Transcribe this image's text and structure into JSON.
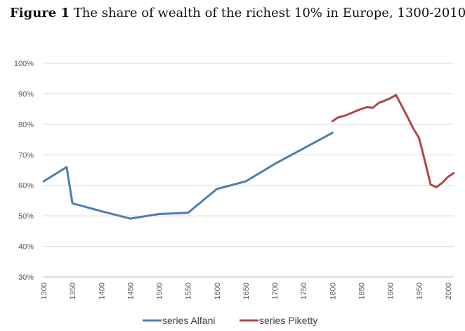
{
  "title": {
    "label": "Figure 1",
    "text": "The share of wealth of the richest 10% in Europe, 1300-2010"
  },
  "chart_data": {
    "type": "line",
    "title": "Figure 1 The share of wealth of the richest 10% in Europe, 1300-2010",
    "xlabel": "",
    "ylabel": "",
    "xlim": [
      1300,
      2010
    ],
    "ylim": [
      30,
      100
    ],
    "yticks": [
      30,
      40,
      50,
      60,
      70,
      80,
      90,
      100
    ],
    "ytick_labels": [
      "30%",
      "40%",
      "50%",
      "60%",
      "70%",
      "80%",
      "90%",
      "100%"
    ],
    "xticks": [
      1300,
      1350,
      1400,
      1450,
      1500,
      1550,
      1600,
      1650,
      1700,
      1750,
      1800,
      1850,
      1900,
      1950,
      2000
    ],
    "xtick_labels": [
      "1300",
      "1350",
      "1400",
      "1450",
      "1500",
      "1550",
      "1600",
      "1650",
      "1700",
      "1750",
      "1800",
      "1850",
      "1900",
      "1950",
      "2000"
    ],
    "grid": true,
    "legend_position": "bottom",
    "series": [
      {
        "name": "series Alfani",
        "color": "#4f7eaf",
        "x": [
          1300,
          1340,
          1350,
          1400,
          1450,
          1500,
          1550,
          1600,
          1650,
          1700,
          1750,
          1800
        ],
        "y": [
          61.3,
          66.0,
          54.1,
          51.5,
          49.1,
          50.6,
          51.0,
          58.8,
          61.3,
          67.0,
          72.1,
          77.2
        ]
      },
      {
        "name": "series Piketty",
        "color": "#b24744",
        "x": [
          1800,
          1810,
          1820,
          1830,
          1840,
          1850,
          1860,
          1870,
          1880,
          1890,
          1900,
          1910,
          1920,
          1930,
          1940,
          1950,
          1960,
          1970,
          1980,
          1990,
          2000,
          2010
        ],
        "y": [
          81.0,
          82.3,
          82.7,
          83.5,
          84.3,
          85.0,
          85.6,
          85.4,
          87.0,
          87.7,
          88.5,
          89.6,
          86.0,
          82.4,
          78.6,
          75.5,
          68.0,
          60.2,
          59.4,
          60.8,
          62.8,
          64.0
        ]
      }
    ]
  }
}
